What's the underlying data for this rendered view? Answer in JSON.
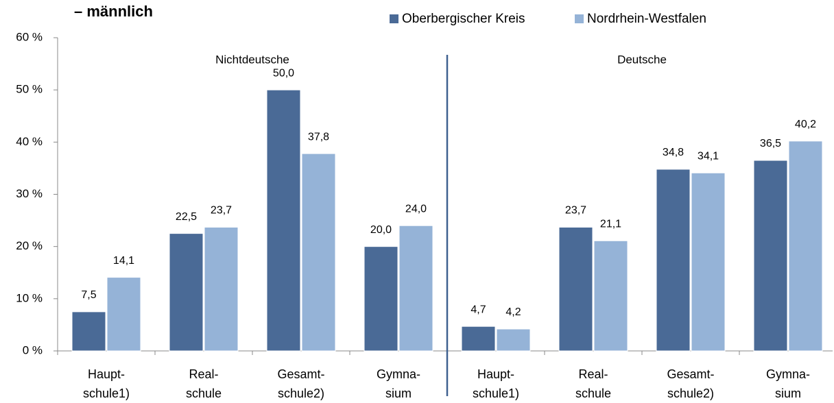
{
  "chart_data": {
    "type": "bar",
    "title": "– männlich",
    "annotations": [
      "Nichtdeutsche",
      "Deutsche"
    ],
    "categories": [
      "Haupt-\nschule1)",
      "Real-\nschule",
      "Gesamt-\nschule2)",
      "Gymna-\nsium",
      "Haupt-\nschule1)",
      "Real-\nschule",
      "Gesamt-\nschule2)",
      "Gymna-\nsium"
    ],
    "series": [
      {
        "name": "Oberbergischer Kreis",
        "color": "#4a6a96",
        "values": [
          7.5,
          22.5,
          50.0,
          20.0,
          4.7,
          23.7,
          34.8,
          36.5
        ],
        "value_labels": [
          "7,5",
          "22,5",
          "50,0",
          "20,0",
          "4,7",
          "23,7",
          "34,8",
          "36,5"
        ]
      },
      {
        "name": "Nordrhein-Westfalen",
        "color": "#95b3d7",
        "values": [
          14.1,
          23.7,
          37.8,
          24.0,
          4.2,
          21.1,
          34.1,
          40.2
        ],
        "value_labels": [
          "14,1",
          "23,7",
          "37,8",
          "24,0",
          "4,2",
          "21,1",
          "34,1",
          "40,2"
        ]
      }
    ],
    "ylim": [
      0,
      60
    ],
    "yticks": [
      {
        "value": 0,
        "label": "0 %"
      },
      {
        "value": 10,
        "label": "10 %"
      },
      {
        "value": 20,
        "label": "20 %"
      },
      {
        "value": 30,
        "label": "30 %"
      },
      {
        "value": 40,
        "label": "40 %"
      },
      {
        "value": 50,
        "label": "50 %"
      },
      {
        "value": 60,
        "label": "60 %"
      }
    ],
    "legend": "top"
  }
}
